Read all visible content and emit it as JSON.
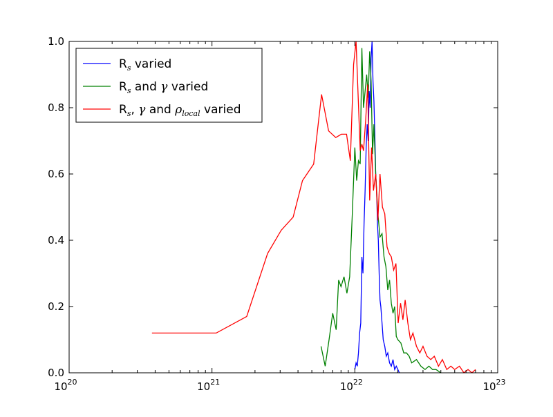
{
  "chart_data": {
    "type": "line",
    "title": "",
    "xlabel": "",
    "ylabel": "",
    "xscale": "log",
    "xlim": [
      1e+20,
      1e+23
    ],
    "ylim": [
      0.0,
      1.0
    ],
    "grid": false,
    "legend_position": "top-left",
    "x_tick_labels": [
      {
        "value": 1e+20,
        "base": "10",
        "exp": "20"
      },
      {
        "value": 1e+21,
        "base": "10",
        "exp": "21"
      },
      {
        "value": 1e+22,
        "base": "10",
        "exp": "22"
      },
      {
        "value": 1e+23,
        "base": "10",
        "exp": "23"
      }
    ],
    "y_tick_labels": [
      {
        "value": 0.0,
        "label": "0.0"
      },
      {
        "value": 0.2,
        "label": "0.2"
      },
      {
        "value": 0.4,
        "label": "0.4"
      },
      {
        "value": 0.6,
        "label": "0.6"
      },
      {
        "value": 0.8,
        "label": "0.8"
      },
      {
        "value": 1.0,
        "label": "1.0"
      }
    ],
    "series": [
      {
        "legend_parts": {
          "R": "R",
          "s": "s",
          "rest": " varied"
        },
        "color": "#0000ff",
        "x": [
          1e+22,
          1.02e+22,
          1.04e+22,
          1.06e+22,
          1.08e+22,
          1.1e+22,
          1.12e+22,
          1.14e+22,
          1.16e+22,
          1.18e+22,
          1.2e+22,
          1.22e+22,
          1.24e+22,
          1.26e+22,
          1.28e+22,
          1.3e+22,
          1.32e+22,
          1.34e+22,
          1.36e+22,
          1.38e+22,
          1.4e+22,
          1.42e+22,
          1.44e+22,
          1.46e+22,
          1.48e+22,
          1.5e+22,
          1.52e+22,
          1.55e+22,
          1.58e+22,
          1.62e+22,
          1.66e+22,
          1.7e+22,
          1.75e+22,
          1.8e+22,
          1.85e+22,
          1.9e+22,
          1.95e+22,
          2e+22,
          2.05e+22
        ],
        "y": [
          0.01,
          0.03,
          0.02,
          0.06,
          0.12,
          0.15,
          0.35,
          0.3,
          0.45,
          0.55,
          0.68,
          0.75,
          0.7,
          0.85,
          0.8,
          0.95,
          1.0,
          0.88,
          0.82,
          0.72,
          0.6,
          0.55,
          0.45,
          0.4,
          0.3,
          0.22,
          0.2,
          0.15,
          0.1,
          0.08,
          0.05,
          0.06,
          0.03,
          0.02,
          0.04,
          0.01,
          0.02,
          0.01,
          0.0
        ]
      },
      {
        "legend_parts": {
          "R": "R",
          "s": "s",
          "and": " and ",
          "gamma": "γ",
          "rest": " varied"
        },
        "color": "#008000",
        "x": [
          5.8e+21,
          6.2e+21,
          6.6e+21,
          7e+21,
          7.4e+21,
          7.7e+21,
          8e+21,
          8.4e+21,
          8.8e+21,
          9.2e+21,
          9.6e+21,
          1e+22,
          1.03e+22,
          1.06e+22,
          1.09e+22,
          1.12e+22,
          1.15e+22,
          1.18e+22,
          1.21e+22,
          1.24e+22,
          1.27e+22,
          1.3e+22,
          1.33e+22,
          1.36e+22,
          1.4e+22,
          1.45e+22,
          1.5e+22,
          1.55e+22,
          1.6e+22,
          1.65e+22,
          1.7e+22,
          1.75e+22,
          1.8e+22,
          1.85e+22,
          1.9e+22,
          1.95e+22,
          2e+22,
          2.1e+22,
          2.2e+22,
          2.3e+22,
          2.4e+22,
          2.5e+22,
          2.7e+22,
          2.9e+22,
          3.1e+22,
          3.3e+22,
          3.5e+22,
          3.7e+22,
          4e+22
        ],
        "y": [
          0.08,
          0.02,
          0.1,
          0.18,
          0.13,
          0.28,
          0.26,
          0.29,
          0.24,
          0.29,
          0.48,
          0.68,
          0.58,
          0.64,
          0.63,
          0.98,
          0.8,
          0.85,
          0.9,
          0.83,
          0.97,
          0.88,
          0.66,
          0.75,
          0.6,
          0.48,
          0.41,
          0.42,
          0.35,
          0.32,
          0.25,
          0.28,
          0.21,
          0.18,
          0.2,
          0.11,
          0.1,
          0.09,
          0.06,
          0.06,
          0.05,
          0.03,
          0.04,
          0.02,
          0.01,
          0.02,
          0.01,
          0.01,
          0.0
        ]
      },
      {
        "legend_parts": {
          "R": "R",
          "s": "s",
          "comma": ", ",
          "gamma": "γ",
          "and": " and ",
          "rho": "ρ",
          "local": "local",
          "rest": " varied"
        },
        "color": "#ff0000",
        "x": [
          3.8e+20,
          1.07e+21,
          1.75e+21,
          2.45e+21,
          3.05e+21,
          3.7e+21,
          4.3e+21,
          5.15e+21,
          5.85e+21,
          6.55e+21,
          7.35e+21,
          8.05e+21,
          8.75e+21,
          9.3e+21,
          9.8e+21,
          1.02e+22,
          1.06e+22,
          1.09e+22,
          1.12e+22,
          1.15e+22,
          1.19e+22,
          1.23e+22,
          1.27e+22,
          1.31e+22,
          1.35e+22,
          1.4e+22,
          1.45e+22,
          1.5e+22,
          1.56e+22,
          1.62e+22,
          1.68e+22,
          1.74e+22,
          1.8e+22,
          1.87e+22,
          1.94e+22,
          2.01e+22,
          2.09e+22,
          2.17e+22,
          2.25e+22,
          2.35e+22,
          2.45e+22,
          2.55e+22,
          2.7e+22,
          2.85e+22,
          3e+22,
          3.2e+22,
          3.4e+22,
          3.6e+22,
          3.85e+22,
          4.1e+22,
          4.4e+22,
          4.7e+22,
          5e+22,
          5.4e+22,
          5.8e+22,
          6.2e+22,
          6.6e+22,
          7e+22
        ],
        "y": [
          0.12,
          0.12,
          0.17,
          0.36,
          0.43,
          0.47,
          0.58,
          0.63,
          0.84,
          0.73,
          0.71,
          0.72,
          0.72,
          0.64,
          0.93,
          1.0,
          0.81,
          0.67,
          0.69,
          0.67,
          0.76,
          0.87,
          0.52,
          0.68,
          0.55,
          0.6,
          0.46,
          0.6,
          0.5,
          0.48,
          0.38,
          0.36,
          0.35,
          0.31,
          0.33,
          0.15,
          0.21,
          0.16,
          0.22,
          0.15,
          0.1,
          0.12,
          0.08,
          0.06,
          0.08,
          0.05,
          0.04,
          0.05,
          0.02,
          0.04,
          0.01,
          0.02,
          0.01,
          0.02,
          0.0,
          0.01,
          0.0,
          0.01
        ]
      }
    ]
  }
}
